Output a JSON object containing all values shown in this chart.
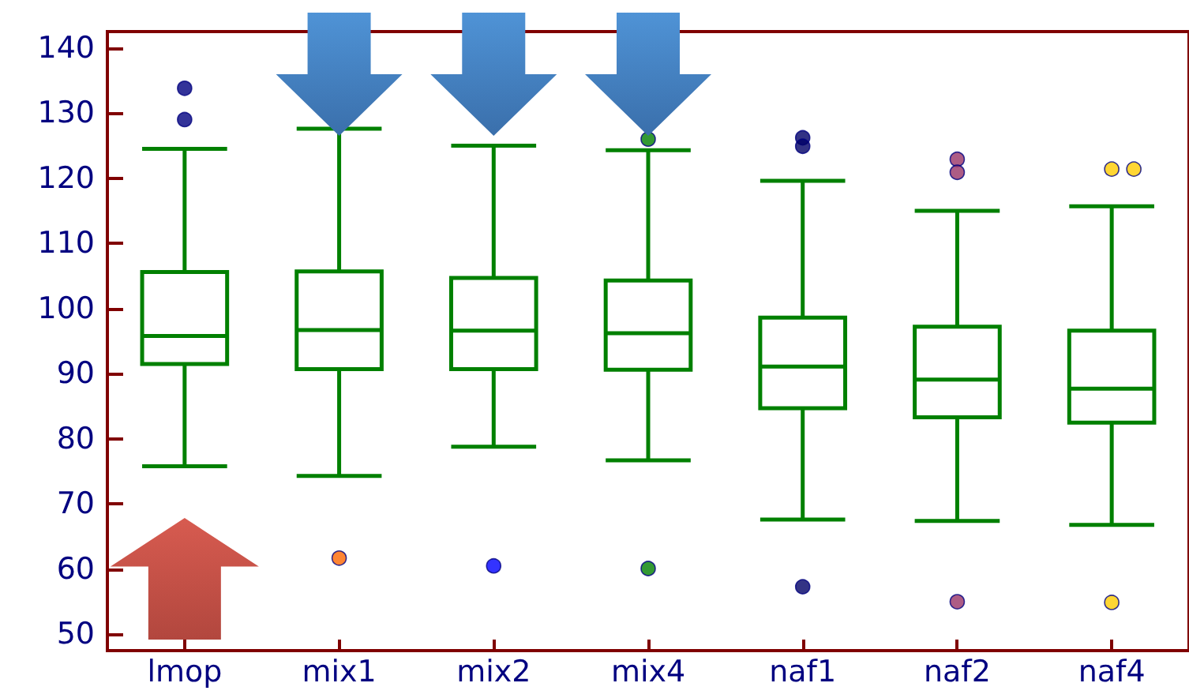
{
  "chart_data": {
    "type": "box",
    "categories": [
      "lmop",
      "mix1",
      "mix2",
      "mix4",
      "naf1",
      "naf2",
      "naf4"
    ],
    "series": [
      {
        "color": "#008000",
        "boxes": [
          {
            "low": 75.8,
            "q1": 91.5,
            "median": 95.8,
            "q3": 105.6,
            "high": 124.5,
            "outliers": [
              133.8,
              129
            ]
          },
          {
            "low": 74.3,
            "q1": 90.7,
            "median": 96.7,
            "q3": 105.7,
            "high": 127.6,
            "outliers": [
              61.7
            ]
          },
          {
            "low": 78.8,
            "q1": 90.7,
            "median": 96.6,
            "q3": 104.7,
            "high": 125,
            "outliers": [
              60.5
            ]
          },
          {
            "low": 76.7,
            "q1": 90.6,
            "median": 96.2,
            "q3": 104.3,
            "high": 124.3,
            "outliers": [
              126,
              60.1
            ]
          },
          {
            "low": 67.6,
            "q1": 84.7,
            "median": 91.1,
            "q3": 98.6,
            "high": 119.6,
            "outliers": [
              126.2,
              124.9,
              57.3
            ]
          },
          {
            "low": 67.4,
            "q1": 83.3,
            "median": 89.1,
            "q3": 97.2,
            "high": 115,
            "outliers": [
              122.9,
              120.9,
              55
            ]
          },
          {
            "low": 66.8,
            "q1": 82.5,
            "median": 87.7,
            "q3": 96.6,
            "high": 115.7,
            "outliers": [
              121.4,
              121.4,
              54.9
            ]
          }
        ]
      }
    ],
    "colors": [
      "#000080",
      "#ff6600",
      "#0000ff",
      "#008000",
      "#000066",
      "#993366",
      "#ffcc00"
    ],
    "marker": "circle",
    "ylim": [
      47.5,
      142.5
    ],
    "yticks": [
      50,
      60,
      70,
      80,
      90,
      100,
      110,
      120,
      130,
      140
    ],
    "grid": false
  }
}
